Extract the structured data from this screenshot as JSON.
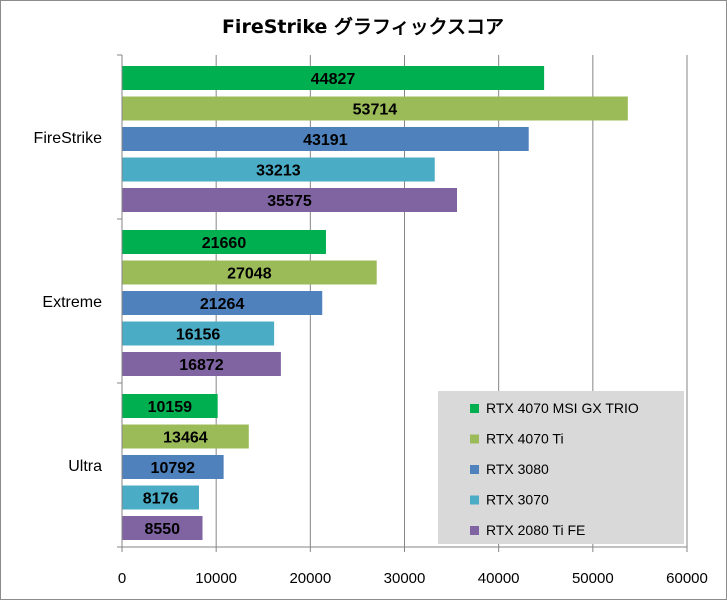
{
  "chart_data": {
    "type": "bar",
    "orientation": "horizontal",
    "title": "FireStrike グラフィックスコア",
    "categories": [
      "FireStrike",
      "Extreme",
      "Ultra"
    ],
    "series": [
      {
        "name": "RTX 4070 MSI GX TRIO",
        "color": "#00b050",
        "values": [
          44827,
          21660,
          10159
        ]
      },
      {
        "name": "RTX 4070 Ti",
        "color": "#9bbb59",
        "values": [
          53714,
          27048,
          13464
        ]
      },
      {
        "name": "RTX 3080",
        "color": "#4f81bd",
        "values": [
          43191,
          21264,
          10792
        ]
      },
      {
        "name": "RTX 3070",
        "color": "#4bacc6",
        "values": [
          33213,
          16156,
          8176
        ]
      },
      {
        "name": "RTX 2080 Ti FE",
        "color": "#8064a2",
        "values": [
          35575,
          16872,
          8550
        ]
      }
    ],
    "xlim": [
      0,
      60000
    ],
    "xticks": [
      0,
      10000,
      20000,
      30000,
      40000,
      50000,
      60000
    ],
    "grid": true,
    "legend_position": "bottom-right",
    "legend_background": "#d9d9d9",
    "data_labels": true
  }
}
